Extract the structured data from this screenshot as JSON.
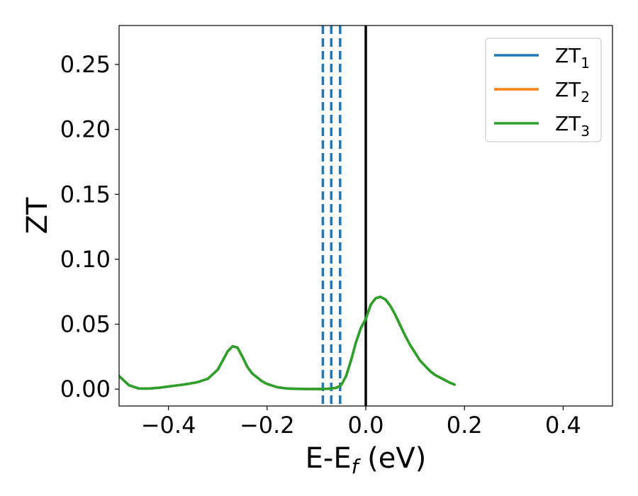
{
  "chart_data": {
    "type": "line",
    "title": "",
    "xlabel": "E-E",
    "xlabel_sub": "f",
    "xlabel_unit": " (eV)",
    "ylabel": "ZT",
    "xlim": [
      -0.5,
      0.5
    ],
    "ylim": [
      -0.013,
      0.28
    ],
    "xticks": [
      -0.4,
      -0.2,
      0.0,
      0.2,
      0.4
    ],
    "xtick_labels": [
      "−0.4",
      "−0.2",
      "0.0",
      "0.2",
      "0.4"
    ],
    "yticks": [
      0.0,
      0.05,
      0.1,
      0.15,
      0.2,
      0.25
    ],
    "ytick_labels": [
      "0.00",
      "0.05",
      "0.10",
      "0.15",
      "0.20",
      "0.25"
    ],
    "grid": false,
    "legend_position": "top-right",
    "series": [
      {
        "name": "ZT",
        "name_sub": "1",
        "color": "#1f77b4",
        "x": [
          -0.5,
          -0.48,
          -0.46,
          -0.44,
          -0.42,
          -0.4,
          -0.38,
          -0.36,
          -0.34,
          -0.32,
          -0.3,
          -0.29,
          -0.28,
          -0.27,
          -0.26,
          -0.25,
          -0.24,
          -0.23,
          -0.22,
          -0.21,
          -0.2,
          -0.18,
          -0.16,
          -0.14,
          -0.12,
          -0.1,
          -0.09,
          -0.08,
          -0.07,
          -0.06,
          -0.05,
          -0.04,
          -0.03,
          -0.02,
          -0.01,
          0.0,
          0.01,
          0.02,
          0.03,
          0.04,
          0.05,
          0.06,
          0.07,
          0.08,
          0.09,
          0.1,
          0.11,
          0.12,
          0.13,
          0.14,
          0.15,
          0.16,
          0.17,
          0.18
        ],
        "y": [
          0.01,
          0.003,
          0.0005,
          0.0004,
          0.001,
          0.002,
          0.003,
          0.004,
          0.0055,
          0.008,
          0.015,
          0.022,
          0.029,
          0.033,
          0.032,
          0.025,
          0.017,
          0.012,
          0.009,
          0.006,
          0.004,
          0.0015,
          0.0005,
          0.0002,
          0.0001,
          0.0001,
          0.0001,
          0.0002,
          0.0004,
          0.001,
          0.003,
          0.01,
          0.022,
          0.036,
          0.047,
          0.054,
          0.065,
          0.07,
          0.071,
          0.069,
          0.064,
          0.057,
          0.049,
          0.041,
          0.034,
          0.028,
          0.022,
          0.018,
          0.014,
          0.011,
          0.009,
          0.007,
          0.005,
          0.0035
        ]
      },
      {
        "name": "ZT",
        "name_sub": "2",
        "color": "#ff7f0e",
        "x": [
          -0.5,
          -0.48,
          -0.46,
          -0.44,
          -0.42,
          -0.4,
          -0.38,
          -0.36,
          -0.34,
          -0.32,
          -0.3,
          -0.29,
          -0.28,
          -0.27,
          -0.26,
          -0.25,
          -0.24,
          -0.23,
          -0.22,
          -0.21,
          -0.2,
          -0.18,
          -0.16,
          -0.14,
          -0.12,
          -0.1,
          -0.09,
          -0.08,
          -0.07,
          -0.06,
          -0.05,
          -0.04,
          -0.03,
          -0.02,
          -0.01,
          0.0,
          0.01,
          0.02,
          0.03,
          0.04,
          0.05,
          0.06,
          0.07,
          0.08,
          0.09,
          0.1,
          0.11,
          0.12,
          0.13,
          0.14,
          0.15,
          0.16,
          0.17,
          0.18
        ],
        "y": [
          0.01,
          0.003,
          0.0005,
          0.0004,
          0.001,
          0.002,
          0.003,
          0.004,
          0.0055,
          0.008,
          0.015,
          0.022,
          0.029,
          0.033,
          0.032,
          0.025,
          0.017,
          0.012,
          0.009,
          0.006,
          0.004,
          0.0015,
          0.0005,
          0.0002,
          0.0001,
          0.0001,
          0.0001,
          0.0002,
          0.0004,
          0.001,
          0.003,
          0.01,
          0.022,
          0.036,
          0.047,
          0.054,
          0.065,
          0.07,
          0.071,
          0.069,
          0.064,
          0.057,
          0.049,
          0.041,
          0.034,
          0.028,
          0.022,
          0.018,
          0.014,
          0.011,
          0.009,
          0.007,
          0.005,
          0.0035
        ]
      },
      {
        "name": "ZT",
        "name_sub": "3",
        "color": "#2ca02c",
        "x": [
          -0.5,
          -0.48,
          -0.46,
          -0.44,
          -0.42,
          -0.4,
          -0.38,
          -0.36,
          -0.34,
          -0.32,
          -0.3,
          -0.29,
          -0.28,
          -0.27,
          -0.26,
          -0.25,
          -0.24,
          -0.23,
          -0.22,
          -0.21,
          -0.2,
          -0.18,
          -0.16,
          -0.14,
          -0.12,
          -0.1,
          -0.09,
          -0.08,
          -0.07,
          -0.06,
          -0.05,
          -0.04,
          -0.03,
          -0.02,
          -0.01,
          0.0,
          0.01,
          0.02,
          0.03,
          0.04,
          0.05,
          0.06,
          0.07,
          0.08,
          0.09,
          0.1,
          0.11,
          0.12,
          0.13,
          0.14,
          0.15,
          0.16,
          0.17,
          0.18
        ],
        "y": [
          0.01,
          0.003,
          0.0005,
          0.0004,
          0.001,
          0.002,
          0.003,
          0.004,
          0.0055,
          0.008,
          0.015,
          0.022,
          0.029,
          0.033,
          0.032,
          0.025,
          0.017,
          0.012,
          0.009,
          0.006,
          0.004,
          0.0015,
          0.0005,
          0.0002,
          0.0001,
          0.0001,
          0.0001,
          0.0002,
          0.0004,
          0.001,
          0.003,
          0.01,
          0.022,
          0.036,
          0.047,
          0.054,
          0.065,
          0.07,
          0.071,
          0.069,
          0.064,
          0.057,
          0.049,
          0.041,
          0.034,
          0.028,
          0.022,
          0.018,
          0.014,
          0.011,
          0.009,
          0.007,
          0.005,
          0.0035
        ]
      }
    ],
    "vlines": [
      {
        "x": -0.087,
        "style": "dashed",
        "color": "#1f77b4"
      },
      {
        "x": -0.07,
        "style": "dashed",
        "color": "#1f77b4"
      },
      {
        "x": -0.052,
        "style": "dashed",
        "color": "#1f77b4"
      },
      {
        "x": 0.0,
        "style": "solid",
        "color": "#000000"
      }
    ]
  }
}
